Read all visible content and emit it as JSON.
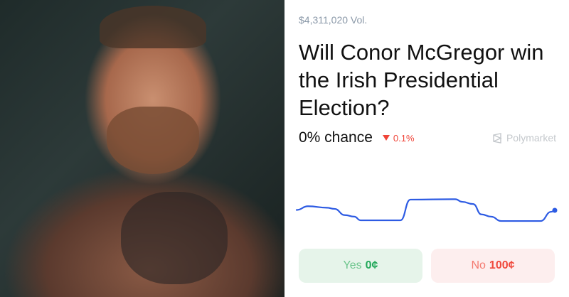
{
  "photo": {
    "subject": "Conor McGregor"
  },
  "market": {
    "volume": "$4,311,020 Vol.",
    "title": "Will Conor McGregor win the Irish Presidential Election?",
    "chance": "0% chance",
    "change": "0.1%",
    "change_direction": "down",
    "brand": "Polymarket"
  },
  "sparkline": {
    "color": "#2d5be3",
    "relative_history": [
      0.51,
      0.61,
      0.57,
      0.54,
      0.37,
      0.33,
      0.23,
      0.23,
      0.79,
      0.8,
      0.73,
      0.67,
      0.39,
      0.33,
      0.21,
      0.21,
      0.46,
      0.5
    ]
  },
  "buttons": {
    "yes_label": "Yes",
    "yes_price": "0¢",
    "no_label": "No",
    "no_price": "100¢"
  },
  "colors": {
    "yes": "#22a85a",
    "no": "#f0493c",
    "accent": "#2d5be3"
  }
}
